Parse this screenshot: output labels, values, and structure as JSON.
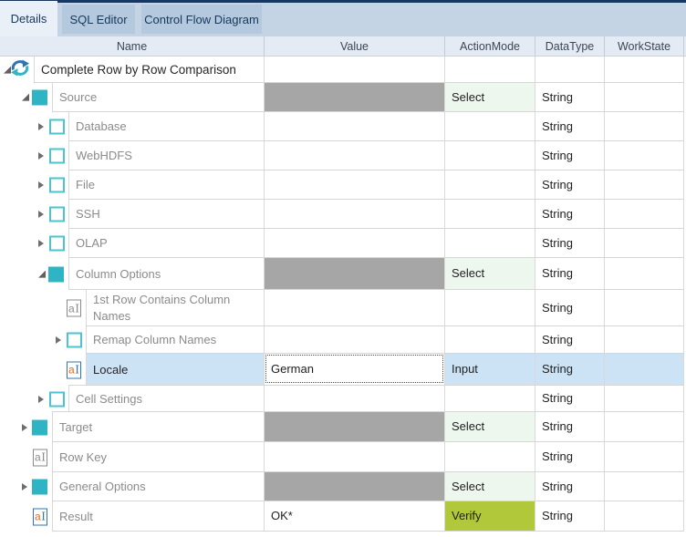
{
  "tabs": [
    {
      "label": "Details",
      "active": true
    },
    {
      "label": "SQL Editor",
      "active": false
    },
    {
      "label": "Control Flow Diagram",
      "active": false
    }
  ],
  "columns": [
    "Name",
    "Value",
    "ActionMode",
    "DataType",
    "WorkState"
  ],
  "colors": {
    "accent_teal": "#2fb4c4",
    "outline_teal": "#4cc3d0",
    "value_fill_gray": "#a6a6a6",
    "select_bg": "#edf7ee",
    "input_bg": "#cbe3f5",
    "verify_bg": "#b2c83b",
    "selection_bg": "#cbe3f5",
    "refresh_blue": "#2e74b5",
    "refresh_teal": "#2fb5c5",
    "icon_orange": "#e2661d",
    "icon_blue": "#2e74b5",
    "icon_gray": "#8a8a8a"
  },
  "rows": [
    {
      "name": "Complete Row by Row Comparison",
      "level": 0,
      "expander": "expanded",
      "icon": "refresh",
      "emphasis": true,
      "value": "",
      "action": "",
      "action_style": "",
      "datatype": "",
      "workstate": ""
    },
    {
      "name": "Source",
      "level": 1,
      "expander": "expanded",
      "icon": "group-filled",
      "value": "",
      "value_fill": true,
      "action": "Select",
      "action_style": "select",
      "datatype": "String",
      "workstate": ""
    },
    {
      "name": "Database",
      "level": 2,
      "expander": "collapsed",
      "icon": "group-outline",
      "value": "",
      "action": "",
      "action_style": "",
      "datatype": "String",
      "workstate": ""
    },
    {
      "name": "WebHDFS",
      "level": 2,
      "expander": "collapsed",
      "icon": "group-outline",
      "value": "",
      "action": "",
      "action_style": "",
      "datatype": "String",
      "workstate": ""
    },
    {
      "name": "File",
      "level": 2,
      "expander": "collapsed",
      "icon": "group-outline",
      "value": "",
      "action": "",
      "action_style": "",
      "datatype": "String",
      "workstate": ""
    },
    {
      "name": "SSH",
      "level": 2,
      "expander": "collapsed",
      "icon": "group-outline",
      "value": "",
      "action": "",
      "action_style": "",
      "datatype": "String",
      "workstate": ""
    },
    {
      "name": "OLAP",
      "level": 2,
      "expander": "collapsed",
      "icon": "group-outline",
      "value": "",
      "action": "",
      "action_style": "",
      "datatype": "String",
      "workstate": ""
    },
    {
      "name": "Column Options",
      "level": 2,
      "expander": "expanded",
      "icon": "group-filled",
      "value": "",
      "value_fill": true,
      "action": "Select",
      "action_style": "select",
      "datatype": "String",
      "workstate": ""
    },
    {
      "name": "1st Row Contains Column Names",
      "level": 3,
      "expander": null,
      "icon": "text-gray",
      "value": "",
      "action": "",
      "action_style": "",
      "datatype": "String",
      "workstate": ""
    },
    {
      "name": "Remap Column Names",
      "level": 3,
      "expander": "collapsed",
      "icon": "group-outline",
      "value": "",
      "action": "",
      "action_style": "",
      "datatype": "String",
      "workstate": ""
    },
    {
      "name": "Locale",
      "level": 3,
      "expander": null,
      "icon": "text-active",
      "value": "German",
      "value_editing": true,
      "action": "Input",
      "action_style": "input",
      "datatype": "String",
      "workstate": "",
      "selected": true
    },
    {
      "name": "Cell Settings",
      "level": 2,
      "expander": "collapsed",
      "icon": "group-outline",
      "value": "",
      "action": "",
      "action_style": "",
      "datatype": "String",
      "workstate": ""
    },
    {
      "name": "Target",
      "level": 1,
      "expander": "collapsed",
      "icon": "group-filled",
      "value": "",
      "value_fill": true,
      "action": "Select",
      "action_style": "select",
      "datatype": "String",
      "workstate": ""
    },
    {
      "name": "Row Key",
      "level": 1,
      "expander": null,
      "icon": "text-gray",
      "value": "",
      "action": "",
      "action_style": "",
      "datatype": "String",
      "workstate": ""
    },
    {
      "name": "General Options",
      "level": 1,
      "expander": "collapsed",
      "icon": "group-filled",
      "value": "",
      "value_fill": true,
      "action": "Select",
      "action_style": "select",
      "datatype": "String",
      "workstate": ""
    },
    {
      "name": "Result",
      "level": 1,
      "expander": null,
      "icon": "text-active",
      "value": "OK*",
      "action": "Verify",
      "action_style": "verify",
      "datatype": "String",
      "workstate": ""
    }
  ]
}
